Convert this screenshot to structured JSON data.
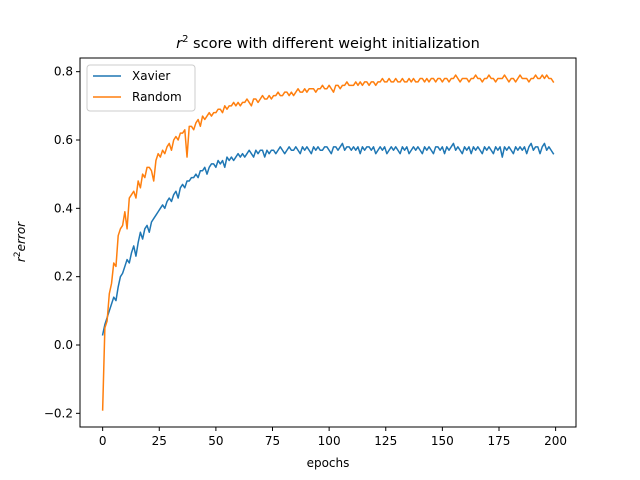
{
  "chart_data": {
    "type": "line",
    "title_prefix": "r",
    "title_sup": "2",
    "title_suffix": " score with different weight initialization",
    "xlabel": "epochs",
    "ylabel_prefix": "r",
    "ylabel_sup": "2",
    "ylabel_suffix": "error",
    "xlim": [
      -10,
      209
    ],
    "ylim": [
      -0.24,
      0.84
    ],
    "xticks": [
      0,
      25,
      50,
      75,
      100,
      125,
      150,
      175,
      200
    ],
    "xtick_labels": [
      "0",
      "25",
      "50",
      "75",
      "100",
      "125",
      "150",
      "175",
      "200"
    ],
    "yticks": [
      -0.2,
      0.0,
      0.2,
      0.4,
      0.6,
      0.8
    ],
    "ytick_labels": [
      "−0.2",
      "0.0",
      "0.2",
      "0.4",
      "0.6",
      "0.8"
    ],
    "grid": false,
    "legend_position": "top-left",
    "x_start": 0,
    "x_end": 199,
    "series": [
      {
        "name": "Xavier",
        "color": "#1f77b4",
        "values": [
          0.03,
          0.06,
          0.08,
          0.1,
          0.12,
          0.14,
          0.13,
          0.17,
          0.2,
          0.21,
          0.23,
          0.25,
          0.24,
          0.27,
          0.29,
          0.26,
          0.3,
          0.33,
          0.31,
          0.34,
          0.35,
          0.33,
          0.36,
          0.37,
          0.38,
          0.39,
          0.4,
          0.41,
          0.4,
          0.42,
          0.43,
          0.42,
          0.44,
          0.45,
          0.43,
          0.46,
          0.47,
          0.46,
          0.48,
          0.48,
          0.49,
          0.49,
          0.5,
          0.49,
          0.51,
          0.51,
          0.52,
          0.5,
          0.52,
          0.53,
          0.53,
          0.52,
          0.54,
          0.53,
          0.54,
          0.52,
          0.55,
          0.54,
          0.55,
          0.54,
          0.55,
          0.56,
          0.55,
          0.56,
          0.55,
          0.56,
          0.57,
          0.56,
          0.55,
          0.57,
          0.56,
          0.57,
          0.57,
          0.55,
          0.57,
          0.56,
          0.57,
          0.57,
          0.56,
          0.57,
          0.58,
          0.57,
          0.56,
          0.57,
          0.58,
          0.57,
          0.57,
          0.58,
          0.57,
          0.56,
          0.58,
          0.57,
          0.58,
          0.57,
          0.56,
          0.58,
          0.57,
          0.58,
          0.57,
          0.57,
          0.58,
          0.58,
          0.57,
          0.56,
          0.58,
          0.58,
          0.57,
          0.58,
          0.59,
          0.57,
          0.58,
          0.58,
          0.57,
          0.58,
          0.57,
          0.58,
          0.56,
          0.58,
          0.57,
          0.58,
          0.58,
          0.57,
          0.58,
          0.56,
          0.57,
          0.58,
          0.57,
          0.58,
          0.56,
          0.57,
          0.58,
          0.57,
          0.58,
          0.57,
          0.56,
          0.58,
          0.57,
          0.58,
          0.56,
          0.57,
          0.58,
          0.57,
          0.58,
          0.57,
          0.56,
          0.58,
          0.57,
          0.58,
          0.57,
          0.56,
          0.58,
          0.58,
          0.57,
          0.58,
          0.56,
          0.58,
          0.57,
          0.58,
          0.59,
          0.57,
          0.58,
          0.57,
          0.56,
          0.58,
          0.57,
          0.58,
          0.56,
          0.58,
          0.57,
          0.58,
          0.57,
          0.56,
          0.58,
          0.57,
          0.58,
          0.57,
          0.56,
          0.58,
          0.57,
          0.58,
          0.55,
          0.58,
          0.57,
          0.58,
          0.57,
          0.56,
          0.58,
          0.57,
          0.58,
          0.57,
          0.58,
          0.56,
          0.58,
          0.59,
          0.57,
          0.58,
          0.58,
          0.56,
          0.58,
          0.59,
          0.57,
          0.58,
          0.57,
          0.56
        ]
      },
      {
        "name": "Random",
        "color": "#ff7f0e",
        "values": [
          -0.19,
          0.05,
          0.07,
          0.15,
          0.18,
          0.24,
          0.23,
          0.32,
          0.34,
          0.35,
          0.39,
          0.34,
          0.43,
          0.44,
          0.45,
          0.43,
          0.48,
          0.46,
          0.5,
          0.49,
          0.52,
          0.52,
          0.51,
          0.48,
          0.54,
          0.56,
          0.55,
          0.57,
          0.56,
          0.58,
          0.59,
          0.57,
          0.6,
          0.61,
          0.6,
          0.62,
          0.62,
          0.63,
          0.55,
          0.64,
          0.64,
          0.63,
          0.65,
          0.66,
          0.64,
          0.67,
          0.66,
          0.67,
          0.68,
          0.67,
          0.68,
          0.68,
          0.69,
          0.69,
          0.68,
          0.7,
          0.69,
          0.7,
          0.7,
          0.71,
          0.7,
          0.71,
          0.7,
          0.71,
          0.71,
          0.72,
          0.71,
          0.7,
          0.72,
          0.72,
          0.71,
          0.72,
          0.73,
          0.72,
          0.72,
          0.73,
          0.72,
          0.73,
          0.73,
          0.74,
          0.73,
          0.73,
          0.74,
          0.74,
          0.73,
          0.74,
          0.73,
          0.74,
          0.75,
          0.74,
          0.74,
          0.75,
          0.74,
          0.75,
          0.75,
          0.75,
          0.74,
          0.75,
          0.75,
          0.76,
          0.75,
          0.75,
          0.76,
          0.75,
          0.74,
          0.76,
          0.76,
          0.75,
          0.76,
          0.76,
          0.77,
          0.76,
          0.76,
          0.76,
          0.77,
          0.76,
          0.77,
          0.76,
          0.77,
          0.77,
          0.76,
          0.77,
          0.77,
          0.76,
          0.77,
          0.77,
          0.78,
          0.77,
          0.77,
          0.78,
          0.77,
          0.77,
          0.78,
          0.77,
          0.77,
          0.78,
          0.77,
          0.77,
          0.78,
          0.77,
          0.78,
          0.77,
          0.77,
          0.78,
          0.78,
          0.77,
          0.78,
          0.77,
          0.78,
          0.78,
          0.77,
          0.78,
          0.78,
          0.77,
          0.78,
          0.78,
          0.77,
          0.78,
          0.78,
          0.79,
          0.78,
          0.77,
          0.78,
          0.78,
          0.78,
          0.77,
          0.78,
          0.78,
          0.79,
          0.78,
          0.78,
          0.77,
          0.78,
          0.78,
          0.79,
          0.78,
          0.78,
          0.77,
          0.78,
          0.78,
          0.78,
          0.79,
          0.78,
          0.77,
          0.78,
          0.78,
          0.77,
          0.78,
          0.79,
          0.78,
          0.78,
          0.78,
          0.77,
          0.78,
          0.78,
          0.79,
          0.78,
          0.78,
          0.79,
          0.78,
          0.79,
          0.78,
          0.78,
          0.77
        ]
      }
    ]
  }
}
